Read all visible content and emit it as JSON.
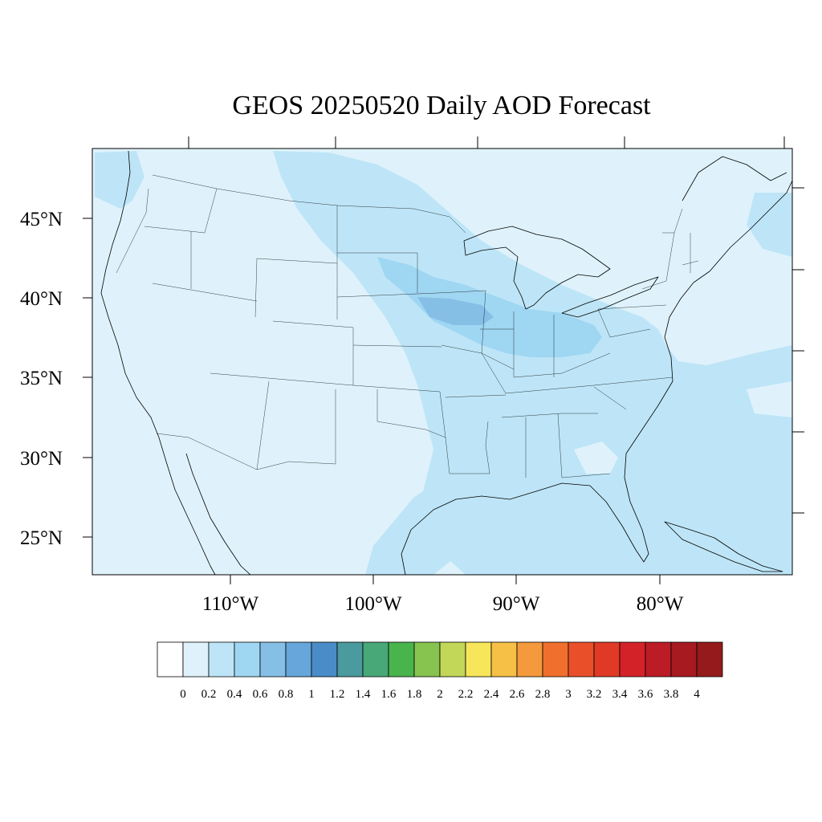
{
  "title": "GEOS 20250520 Daily AOD Forecast",
  "lat_labels": [
    "45°N",
    "40°N",
    "35°N",
    "30°N",
    "25°N"
  ],
  "lon_labels": [
    "110°W",
    "100°W",
    "90°W",
    "80°W"
  ],
  "colorbar": {
    "labels": [
      "0",
      "0.2",
      "0.4",
      "0.6",
      "0.8",
      "1",
      "1.2",
      "1.4",
      "1.6",
      "1.8",
      "2",
      "2.2",
      "2.4",
      "2.6",
      "2.8",
      "3",
      "3.2",
      "3.4",
      "3.6",
      "3.8",
      "4"
    ],
    "colors": [
      "#ffffff",
      "#dff2fb",
      "#bde5f7",
      "#9fd6f2",
      "#85bfe6",
      "#66a6da",
      "#4a8cc8",
      "#4a9a9e",
      "#48a878",
      "#4ab44c",
      "#86c34f",
      "#c2d658",
      "#f7e65a",
      "#f6bf46",
      "#f49a3c",
      "#f06f2c",
      "#e9502a",
      "#e03a27",
      "#d42229",
      "#bb1c25",
      "#a71a20",
      "#941a1c"
    ]
  },
  "map": {
    "lon_range": [
      -119,
      -71.2
    ],
    "lat_range": [
      22.8,
      49.5
    ],
    "background_color": "#dff2fb"
  }
}
